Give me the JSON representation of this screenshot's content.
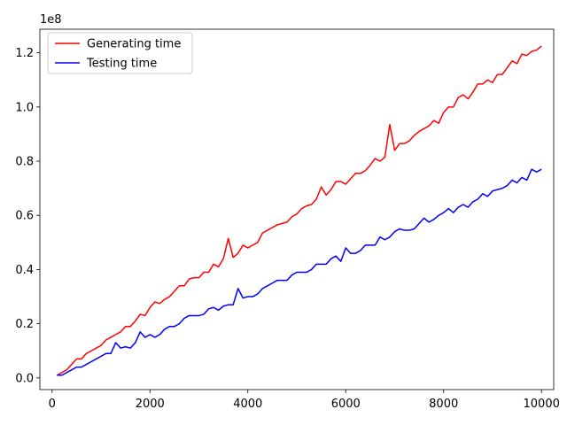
{
  "chart_data": {
    "type": "line",
    "title": "",
    "xlabel": "",
    "ylabel": "",
    "y_offset_label": "1e8",
    "xlim": [
      -250,
      10250
    ],
    "ylim": [
      -4300000,
      128700000
    ],
    "xticks": [
      0,
      2000,
      4000,
      6000,
      8000,
      10000
    ],
    "xtick_labels": [
      "0",
      "2000",
      "4000",
      "6000",
      "8000",
      "10000"
    ],
    "yticks": [
      0,
      20000000,
      40000000,
      60000000,
      80000000,
      100000000,
      120000000
    ],
    "ytick_labels": [
      "0.0",
      "0.2",
      "0.4",
      "0.6",
      "0.8",
      "1.0",
      "1.2"
    ],
    "grid": false,
    "legend_position": "top-left",
    "series": [
      {
        "name": "Generating time",
        "color": "#ff0000",
        "x": [
          100,
          200,
          300,
          400,
          500,
          600,
          700,
          800,
          900,
          1000,
          1100,
          1200,
          1300,
          1400,
          1500,
          1600,
          1700,
          1800,
          1900,
          2000,
          2100,
          2200,
          2300,
          2400,
          2500,
          2600,
          2700,
          2800,
          2900,
          3000,
          3100,
          3200,
          3300,
          3400,
          3500,
          3600,
          3700,
          3800,
          3900,
          4000,
          4100,
          4200,
          4300,
          4400,
          4500,
          4600,
          4700,
          4800,
          4900,
          5000,
          5100,
          5200,
          5300,
          5400,
          5500,
          5600,
          5700,
          5800,
          5900,
          6000,
          6100,
          6200,
          6300,
          6400,
          6500,
          6600,
          6700,
          6800,
          6900,
          7000,
          7100,
          7200,
          7300,
          7400,
          7500,
          7600,
          7700,
          7800,
          7900,
          8000,
          8100,
          8200,
          8300,
          8400,
          8500,
          8600,
          8700,
          8800,
          8900,
          9000,
          9100,
          9200,
          9300,
          9400,
          9500,
          9600,
          9700,
          9800,
          9900,
          10000
        ],
        "y": [
          1000000,
          2000000,
          3000000,
          5000000,
          7000000,
          7000000,
          9000000,
          10000000,
          11000000,
          12000000,
          14000000,
          15000000,
          16000000,
          17000000,
          19000000,
          19000000,
          21000000,
          23500000,
          23000000,
          26000000,
          28000000,
          27500000,
          29000000,
          30000000,
          32000000,
          34000000,
          34000000,
          36500000,
          37000000,
          37000000,
          39000000,
          39000000,
          42000000,
          41000000,
          44000000,
          51500000,
          44500000,
          46000000,
          49000000,
          48000000,
          49000000,
          50000000,
          53500000,
          54500000,
          55500000,
          56500000,
          57000000,
          57500000,
          59500000,
          60500000,
          62500000,
          63500000,
          64000000,
          66000000,
          70500000,
          67500000,
          69500000,
          72500000,
          72500000,
          71500000,
          73500000,
          75500000,
          75500000,
          76500000,
          78500000,
          81000000,
          80000000,
          81500000,
          93500000,
          84000000,
          86500000,
          86500000,
          87500000,
          89500000,
          91000000,
          92000000,
          93000000,
          95000000,
          94000000,
          98000000,
          100000000,
          100000000,
          103500000,
          104500000,
          103000000,
          105500000,
          108500000,
          108500000,
          110000000,
          109000000,
          112000000,
          112000000,
          114500000,
          117000000,
          116000000,
          119500000,
          119000000,
          120500000,
          121000000,
          122500000
        ]
      },
      {
        "name": "Testing time",
        "color": "#0000ff",
        "x": [
          100,
          200,
          300,
          400,
          500,
          600,
          700,
          800,
          900,
          1000,
          1100,
          1200,
          1300,
          1400,
          1500,
          1600,
          1700,
          1800,
          1900,
          2000,
          2100,
          2200,
          2300,
          2400,
          2500,
          2600,
          2700,
          2800,
          2900,
          3000,
          3100,
          3200,
          3300,
          3400,
          3500,
          3600,
          3700,
          3800,
          3900,
          4000,
          4100,
          4200,
          4300,
          4400,
          4500,
          4600,
          4700,
          4800,
          4900,
          5000,
          5100,
          5200,
          5300,
          5400,
          5500,
          5600,
          5700,
          5800,
          5900,
          6000,
          6100,
          6200,
          6300,
          6400,
          6500,
          6600,
          6700,
          6800,
          6900,
          7000,
          7100,
          7200,
          7300,
          7400,
          7500,
          7600,
          7700,
          7800,
          7900,
          8000,
          8100,
          8200,
          8300,
          8400,
          8500,
          8600,
          8700,
          8800,
          8900,
          9000,
          9100,
          9200,
          9300,
          9400,
          9500,
          9600,
          9700,
          9800,
          9900,
          10000
        ],
        "y": [
          1000000,
          1000000,
          2000000,
          3000000,
          4000000,
          4000000,
          5000000,
          6000000,
          7000000,
          8000000,
          9000000,
          9000000,
          13000000,
          11000000,
          11500000,
          11000000,
          13000000,
          17000000,
          15000000,
          16000000,
          15000000,
          16000000,
          18000000,
          19000000,
          19000000,
          20000000,
          22000000,
          23000000,
          23000000,
          23000000,
          23500000,
          25500000,
          26000000,
          25000000,
          26500000,
          27000000,
          27000000,
          33000000,
          29500000,
          30000000,
          30000000,
          31000000,
          33000000,
          34000000,
          35000000,
          36000000,
          36000000,
          36000000,
          38000000,
          39000000,
          39000000,
          39000000,
          40000000,
          42000000,
          42000000,
          42000000,
          44000000,
          45000000,
          43000000,
          48000000,
          46000000,
          46000000,
          47000000,
          49000000,
          49000000,
          49000000,
          52000000,
          51000000,
          52000000,
          54000000,
          55000000,
          54500000,
          54500000,
          55000000,
          57000000,
          59000000,
          57500000,
          58500000,
          60000000,
          61000000,
          62500000,
          61000000,
          63000000,
          64000000,
          63000000,
          65000000,
          66000000,
          68000000,
          67000000,
          69000000,
          69500000,
          70000000,
          71000000,
          73000000,
          72000000,
          74000000,
          73000000,
          77000000,
          76000000,
          77000000
        ]
      }
    ]
  }
}
